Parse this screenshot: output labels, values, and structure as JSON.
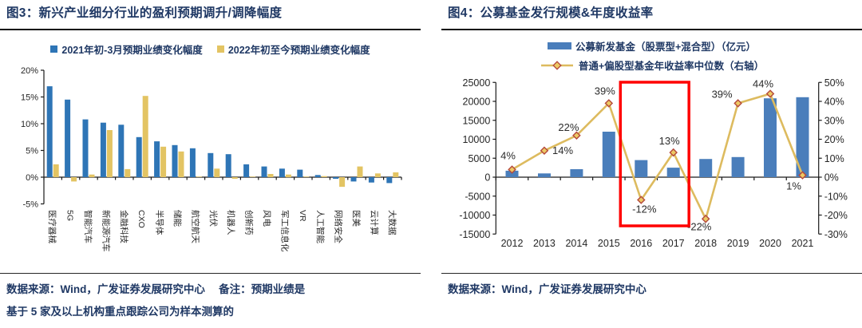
{
  "figure3": {
    "title": "图3：新兴产业细分行业的盈利预期调升/调降幅度",
    "source_line1": "数据来源：Wind，广发证券发展研究中心　 备注：预期业绩是",
    "source_line2": "基于 5 家及以上机构重点跟踪公司为样本测算的"
  },
  "figure4": {
    "title": "图4：公募基金发行规模&年度收益率",
    "source": "数据来源：Wind，广发证券发展研究中心"
  },
  "colors": {
    "title_navy": "#1f3864",
    "fig3_bar_2021": "#2e75b6",
    "fig3_bar_2022": "#e3c463",
    "fig4_bar": "#4a7ebb",
    "fig4_line": "#ddbb5f",
    "fig4_marker_fill": "#ecc964",
    "fig4_marker_stroke": "#b5483b",
    "highlight_red": "#ff0000",
    "axis": "#1a1a1a",
    "axis_text": "#262626"
  },
  "chart_data": [
    {
      "type": "bar",
      "title": "图3：新兴产业细分行业的盈利预期调升/调降幅度",
      "categories": [
        "医疗器械",
        "5G",
        "智能汽车",
        "新能源汽车",
        "金融科技",
        "CXO",
        "半导体",
        "储能",
        "航空航天",
        "光伏",
        "机器人",
        "创新药",
        "风电",
        "军工信息化",
        "VR",
        "人工智能",
        "网络安全",
        "医美",
        "云计算",
        "大数据"
      ],
      "series": [
        {
          "name": "2021年初-3月预期业绩变化幅度",
          "color": "#2e75b6",
          "values": [
            17.0,
            14.5,
            10.8,
            10.2,
            9.8,
            7.5,
            6.7,
            6.0,
            5.4,
            4.5,
            4.3,
            2.4,
            2.0,
            1.6,
            1.4,
            0.4,
            -0.3,
            -0.8,
            -1.0,
            -1.1
          ]
        },
        {
          "name": "2022年初至今预期业绩变化幅度",
          "color": "#e3c463",
          "values": [
            2.4,
            -0.8,
            0.5,
            8.8,
            1.5,
            15.2,
            5.7,
            4.8,
            0.1,
            1.6,
            -0.3,
            0.1,
            0.6,
            0.5,
            0.1,
            0.2,
            -1.8,
            2.0,
            0.7,
            0.9
          ]
        }
      ],
      "ylabel": "",
      "ylim": [
        -5,
        20
      ],
      "y_ticks": [
        "20%",
        "15%",
        "10%",
        "5%",
        "0%",
        "-5%"
      ],
      "grid": false,
      "legend_position": "top"
    },
    {
      "type": "combo",
      "title": "图4：公募基金发行规模&年度收益率",
      "categories": [
        "2012",
        "2013",
        "2014",
        "2015",
        "2016",
        "2017",
        "2018",
        "2019",
        "2020",
        "2021"
      ],
      "bar_series": {
        "name": "公募新发基金（股票型+混合型）（亿元）",
        "color": "#4a7ebb",
        "axis": "left",
        "values": [
          1700,
          1000,
          2100,
          12000,
          4500,
          2500,
          4800,
          5300,
          20800,
          21100
        ]
      },
      "line_series": {
        "name": "普通+偏股型基金年收益率中位数（右轴）",
        "color": "#ddbb5f",
        "axis": "right",
        "values": [
          4,
          14,
          22,
          39,
          -12,
          13,
          -22,
          39,
          44,
          1
        ],
        "labels": [
          "4%",
          "14%",
          "22%",
          "39%",
          "-12%",
          "13%",
          "-22%",
          "39%",
          "44%",
          "1%"
        ]
      },
      "left_ylim": [
        -15000,
        25000
      ],
      "right_ylim": [
        -30,
        50
      ],
      "left_yticks": [
        "25000",
        "20000",
        "15000",
        "10000",
        "5000",
        "0",
        "-5000",
        "-10000",
        "-15000"
      ],
      "right_yticks": [
        "50%",
        "40%",
        "30%",
        "20%",
        "10%",
        "0%",
        "-10%",
        "-20%",
        "-30%"
      ],
      "highlight": {
        "from": "2016",
        "to": "2017",
        "color": "#ff0000"
      },
      "grid": false,
      "legend_position": "top"
    }
  ]
}
